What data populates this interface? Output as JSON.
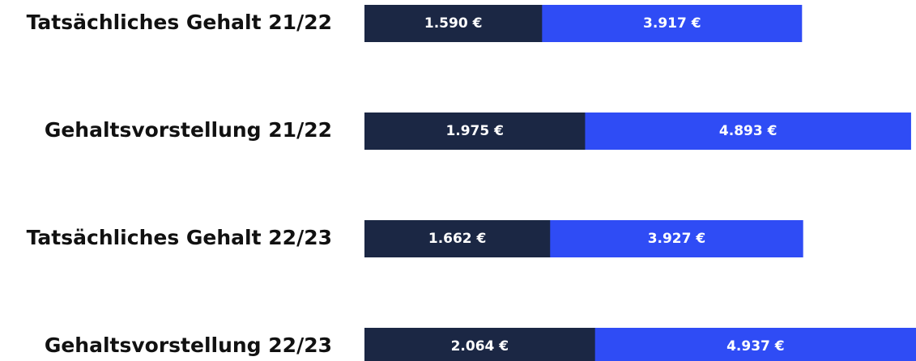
{
  "chart_data": {
    "type": "bar",
    "orientation": "horizontal",
    "layout": "overlap",
    "categories": [
      "Tatsächliches Gehalt 21/22",
      "Gehaltsvorstellung 21/22",
      "Tatsächliches Gehalt 22/23",
      "Gehaltsvorstellung 22/23"
    ],
    "series": [
      {
        "color": "#2f4cf5",
        "values": [
          3917,
          4893,
          3927,
          4937
        ],
        "value_labels": [
          "3.917 €",
          "4.893 €",
          "3.927 €",
          "4.937 €"
        ]
      },
      {
        "color": "#1b2744",
        "values": [
          1590,
          1975,
          1662,
          2064
        ],
        "value_labels": [
          "1.590 €",
          "1.975 €",
          "1.662 €",
          "2.064 €"
        ]
      }
    ]
  }
}
